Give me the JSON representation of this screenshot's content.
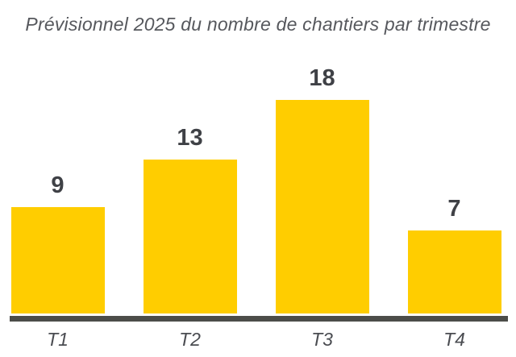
{
  "title": "Prévisionnel 2025 du nombre de chantiers par trimestre",
  "colors": {
    "bar": "#ffcd00",
    "baseline": "#4c4d49",
    "title_text": "#56585d",
    "value_label_text": "#3f4146",
    "tick_label_text": "#4a4c51",
    "background": "#ffffff"
  },
  "chart_data": {
    "type": "bar",
    "title": "Prévisionnel 2025 du nombre de chantiers par trimestre",
    "categories": [
      "T1",
      "T2",
      "T3",
      "T4"
    ],
    "values": [
      9,
      13,
      18,
      7
    ],
    "xlabel": "",
    "ylabel": "",
    "ylim": [
      0,
      20
    ],
    "grid": false,
    "legend": false,
    "value_labels_shown": true,
    "bar_color": "#ffcd00",
    "axis_line_color": "#4c4d49"
  }
}
